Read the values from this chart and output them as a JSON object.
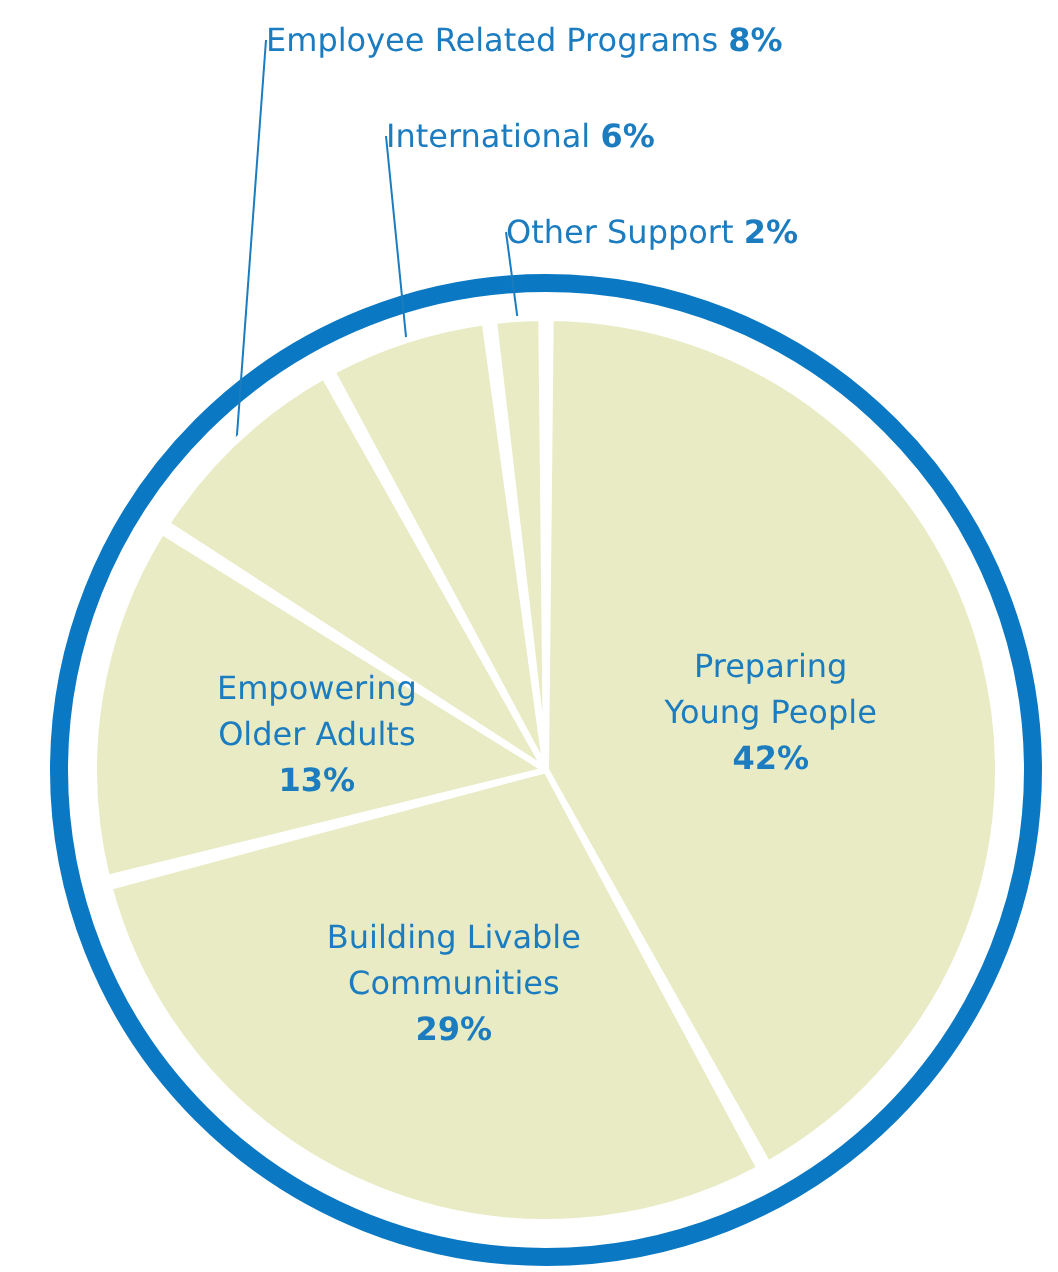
{
  "chart_data": {
    "type": "pie",
    "categories": [
      "Preparing Young People",
      "Building Livable Communities",
      "Empowering Older Adults",
      "Employee Related Programs",
      "International",
      "Other Support"
    ],
    "values": [
      42,
      29,
      13,
      8,
      6,
      2
    ],
    "value_labels": [
      "42%",
      "29%",
      "13%",
      "8%",
      "6%",
      "2%"
    ],
    "colors": [
      "#e8ebc3",
      "#e8ebc3",
      "#e8ebc3",
      "#e8ebc3",
      "#e8ebc3",
      "#e8ebc3"
    ],
    "legend": false
  }
}
